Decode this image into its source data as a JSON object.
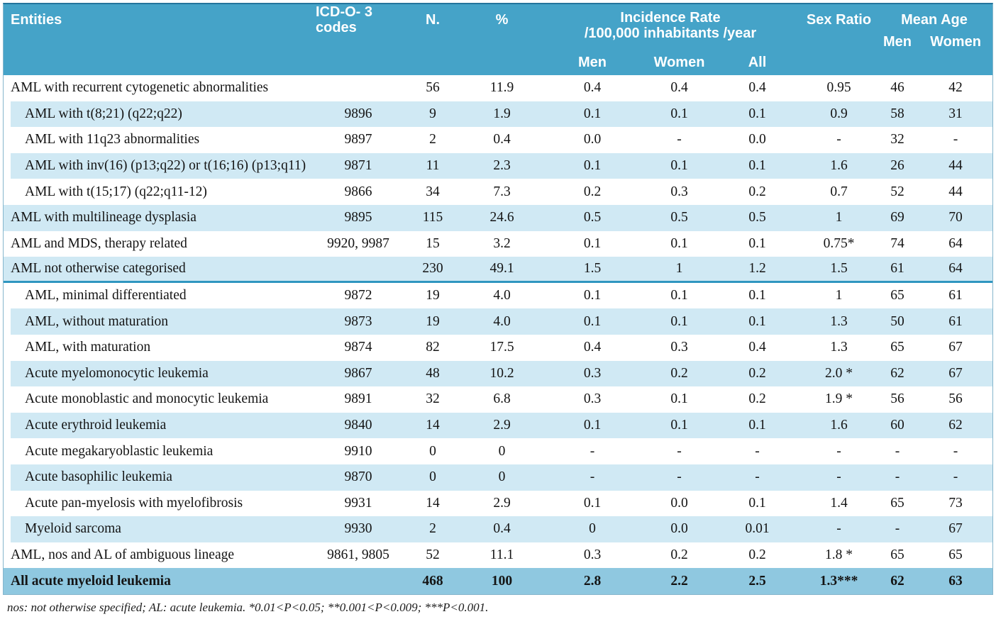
{
  "colors": {
    "header_bg": "#45a3c8",
    "light_row": "#d0e9f4",
    "total_row": "#8fc8e0",
    "divider": "#2f96c0",
    "header_text": "#ffffff",
    "body_text": "#141414"
  },
  "header": {
    "entities": "Entities",
    "icd_codes": "ICD-O- 3 codes",
    "n": "N.",
    "percent": "%",
    "incidence_title": "Incidence Rate",
    "incidence_subtitle": "/100,000 inhabitants /year",
    "incidence_men": "Men",
    "incidence_women": "Women",
    "incidence_all": "All",
    "sex_ratio": "Sex Ratio",
    "mean_age": "Mean Age",
    "mean_age_men": "Men",
    "mean_age_women": "Women"
  },
  "rows": [
    {
      "entity": "AML with recurrent cytogenetic abnormalities",
      "icd": "",
      "n": "56",
      "pct": "11.9",
      "inc_men": "0.4",
      "inc_women": "0.4",
      "inc_all": "0.4",
      "sex_ratio": "0.95",
      "age_men": "46",
      "age_women": "42",
      "indent": false
    },
    {
      "entity": "AML with t(8;21) (q22;q22)",
      "icd": "9896",
      "n": "9",
      "pct": "1.9",
      "inc_men": "0.1",
      "inc_women": "0.1",
      "inc_all": "0.1",
      "sex_ratio": "0.9",
      "age_men": "58",
      "age_women": "31",
      "indent": true
    },
    {
      "entity": "AML with 11q23 abnormalities",
      "icd": "9897",
      "n": "2",
      "pct": "0.4",
      "inc_men": "0.0",
      "inc_women": "-",
      "inc_all": "0.0",
      "sex_ratio": "-",
      "age_men": "32",
      "age_women": "-",
      "indent": true
    },
    {
      "entity": "AML with inv(16) (p13;q22) or t(16;16) (p13;q11)",
      "icd": "9871",
      "n": "11",
      "pct": "2.3",
      "inc_men": "0.1",
      "inc_women": "0.1",
      "inc_all": "0.1",
      "sex_ratio": "1.6",
      "age_men": "26",
      "age_women": "44",
      "indent": true
    },
    {
      "entity": "AML with t(15;17) (q22;q11-12)",
      "icd": "9866",
      "n": "34",
      "pct": "7.3",
      "inc_men": "0.2",
      "inc_women": "0.3",
      "inc_all": "0.2",
      "sex_ratio": "0.7",
      "age_men": "52",
      "age_women": "44",
      "indent": true
    },
    {
      "entity": "AML with multilineage dysplasia",
      "icd": "9895",
      "n": "115",
      "pct": "24.6",
      "inc_men": "0.5",
      "inc_women": "0.5",
      "inc_all": "0.5",
      "sex_ratio": "1",
      "age_men": "69",
      "age_women": "70",
      "indent": false
    },
    {
      "entity": "AML and MDS, therapy related",
      "icd": "9920, 9987",
      "n": "15",
      "pct": "3.2",
      "inc_men": "0.1",
      "inc_women": "0.1",
      "inc_all": "0.1",
      "sex_ratio": "0.75*",
      "age_men": "74",
      "age_women": "64",
      "indent": false
    },
    {
      "entity": "AML not otherwise categorised",
      "icd": "",
      "n": "230",
      "pct": "49.1",
      "inc_men": "1.5",
      "inc_women": "1",
      "inc_all": "1.2",
      "sex_ratio": "1.5",
      "age_men": "61",
      "age_women": "64",
      "indent": false
    },
    {
      "entity": "AML, minimal differentiated",
      "icd": "9872",
      "n": "19",
      "pct": "4.0",
      "inc_men": "0.1",
      "inc_women": "0.1",
      "inc_all": "0.1",
      "sex_ratio": "1",
      "age_men": "65",
      "age_women": "61",
      "indent": true
    },
    {
      "entity": "AML, without maturation",
      "icd": "9873",
      "n": "19",
      "pct": "4.0",
      "inc_men": "0.1",
      "inc_women": "0.1",
      "inc_all": "0.1",
      "sex_ratio": "1.3",
      "age_men": "50",
      "age_women": "61",
      "indent": true
    },
    {
      "entity": "AML, with maturation",
      "icd": "9874",
      "n": "82",
      "pct": "17.5",
      "inc_men": "0.4",
      "inc_women": "0.3",
      "inc_all": "0.4",
      "sex_ratio": "1.3",
      "age_men": "65",
      "age_women": "67",
      "indent": true
    },
    {
      "entity": "Acute myelomonocytic leukemia",
      "icd": "9867",
      "n": "48",
      "pct": "10.2",
      "inc_men": "0.3",
      "inc_women": "0.2",
      "inc_all": "0.2",
      "sex_ratio": "2.0 *",
      "age_men": "62",
      "age_women": "67",
      "indent": true
    },
    {
      "entity": "Acute monoblastic and monocytic leukemia",
      "icd": "9891",
      "n": "32",
      "pct": "6.8",
      "inc_men": "0.3",
      "inc_women": "0.1",
      "inc_all": "0.2",
      "sex_ratio": "1.9 *",
      "age_men": "56",
      "age_women": "56",
      "indent": true
    },
    {
      "entity": "Acute erythroid leukemia",
      "icd": "9840",
      "n": "14",
      "pct": "2.9",
      "inc_men": "0.1",
      "inc_women": "0.1",
      "inc_all": "0.1",
      "sex_ratio": "1.6",
      "age_men": "60",
      "age_women": "62",
      "indent": true
    },
    {
      "entity": "Acute megakaryoblastic leukemia",
      "icd": "9910",
      "n": "0",
      "pct": "0",
      "inc_men": "-",
      "inc_women": "-",
      "inc_all": "-",
      "sex_ratio": "-",
      "age_men": "-",
      "age_women": "-",
      "indent": true
    },
    {
      "entity": "Acute basophilic leukemia",
      "icd": "9870",
      "n": "0",
      "pct": "0",
      "inc_men": "-",
      "inc_women": "-",
      "inc_all": "-",
      "sex_ratio": "-",
      "age_men": "-",
      "age_women": "-",
      "indent": true
    },
    {
      "entity": "Acute pan-myelosis with myelofibrosis",
      "icd": "9931",
      "n": "14",
      "pct": "2.9",
      "inc_men": "0.1",
      "inc_women": "0.0",
      "inc_all": "0.1",
      "sex_ratio": "1.4",
      "age_men": "65",
      "age_women": "73",
      "indent": true
    },
    {
      "entity": "Myeloid sarcoma",
      "icd": "9930",
      "n": "2",
      "pct": "0.4",
      "inc_men": "0",
      "inc_women": "0.0",
      "inc_all": "0.01",
      "sex_ratio": "-",
      "age_men": "-",
      "age_women": "67",
      "indent": true
    },
    {
      "entity": "AML, nos and AL of ambiguous lineage",
      "icd": "9861, 9805",
      "n": "52",
      "pct": "11.1",
      "inc_men": "0.3",
      "inc_women": "0.2",
      "inc_all": "0.2",
      "sex_ratio": "1.8 *",
      "age_men": "65",
      "age_women": "65",
      "indent": false
    },
    {
      "entity": "All acute myeloid leukemia",
      "icd": "",
      "n": "468",
      "pct": "100",
      "inc_men": "2.8",
      "inc_women": "2.2",
      "inc_all": "2.5",
      "sex_ratio": "1.3***",
      "age_men": "62",
      "age_women": "63",
      "indent": false
    }
  ],
  "footnote": "nos: not otherwise specified; AL: acute leukemia. *0.01<P<0.05; **0.001<P<0.009; ***P<0.001."
}
